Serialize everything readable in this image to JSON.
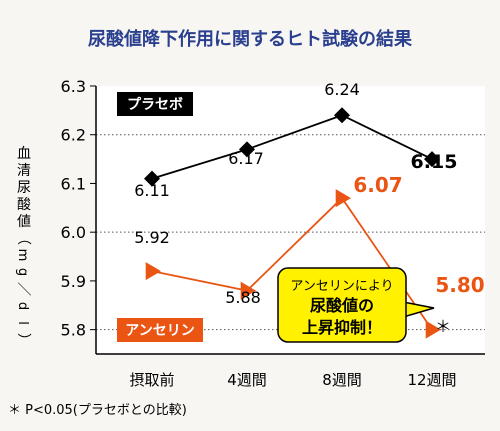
{
  "chart_data": {
    "type": "line",
    "title": "尿酸値降下作用に関するヒト試験の結果",
    "ylabel": "血清尿酸値（mg／dl）",
    "categories": [
      "摂取前",
      "4週間",
      "8週間",
      "12週間"
    ],
    "ylim": [
      5.8,
      6.3
    ],
    "yticks": [
      "6.3",
      "6.2",
      "6.1",
      "6.0",
      "5.9",
      "5.8"
    ],
    "ytick_values": [
      6.3,
      6.2,
      6.1,
      6.0,
      5.9,
      5.8
    ],
    "series": [
      {
        "name": "プラセボ",
        "values": [
          6.11,
          6.17,
          6.24,
          6.15
        ],
        "labels": [
          "6.11",
          "6.17",
          "6.24",
          "6.15"
        ],
        "color": "#000000"
      },
      {
        "name": "アンセリン",
        "values": [
          5.92,
          5.88,
          6.07,
          5.8
        ],
        "labels": [
          "5.92",
          "5.88",
          "6.07",
          "5.80"
        ],
        "color": "#ea5513"
      }
    ],
    "callout": {
      "line1": "アンセリンにより",
      "line2": "尿酸値の",
      "line3": "上昇抑制！"
    },
    "significance_mark": "＊",
    "footnote": "＊ P<0.05(プラセボとの比較)",
    "grid": "dotted horizontal at 6.2, 6.0, 5.8"
  },
  "colors": {
    "title": "#2b3f8f",
    "orange": "#ea5513",
    "callout_bg": "#fff100"
  }
}
